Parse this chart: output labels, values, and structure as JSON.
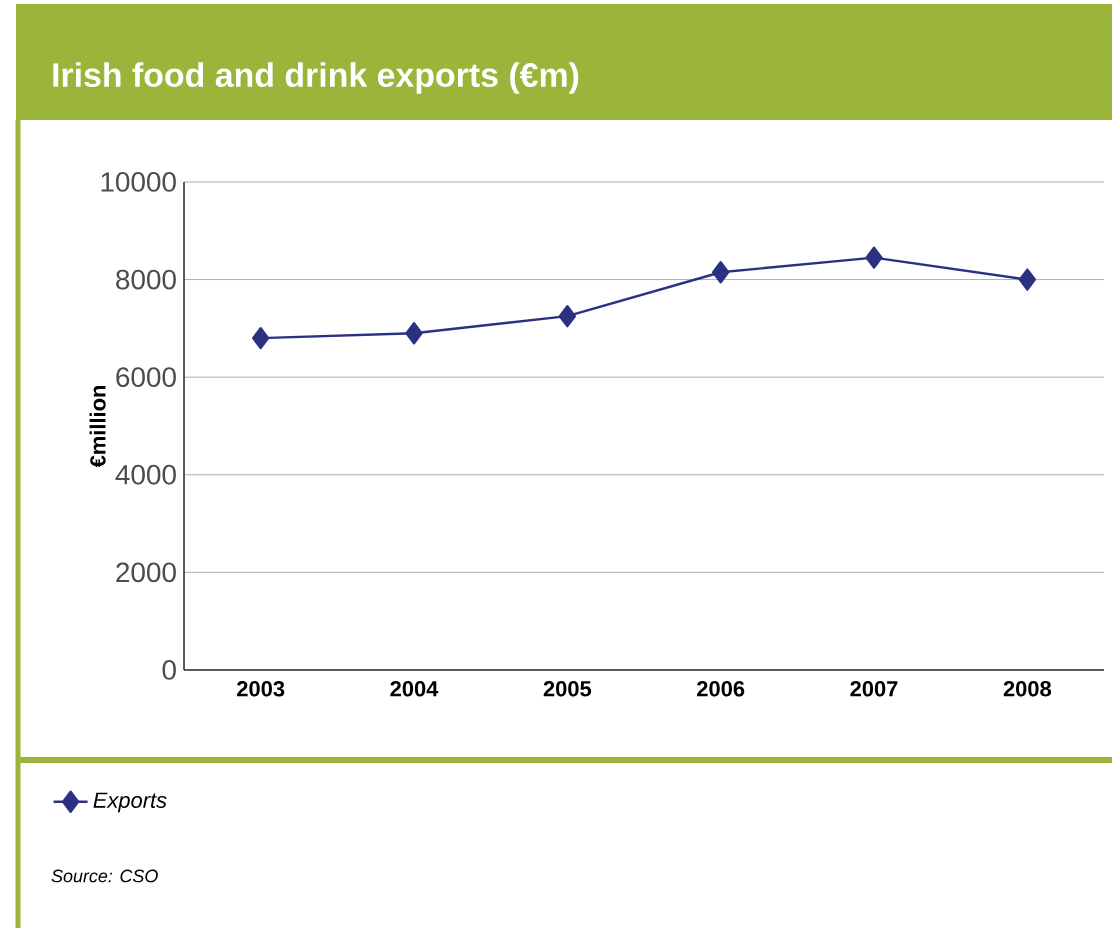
{
  "chart_data": {
    "type": "line",
    "title": "Irish food and drink exports (€m)",
    "ylabel": "€million",
    "categories": [
      "2003",
      "2004",
      "2005",
      "2006",
      "2007",
      "2008"
    ],
    "series": [
      {
        "name": "Exports",
        "color": "#2b3182",
        "values": [
          6800,
          6900,
          7250,
          8150,
          8450,
          8000
        ]
      }
    ],
    "ylim": [
      0,
      10000
    ],
    "yticks": [
      0,
      2000,
      4000,
      6000,
      8000,
      10000
    ],
    "grid": "y",
    "legend": "bottom",
    "marker": "diamond",
    "annotations": [
      "Source: CSO"
    ]
  }
}
